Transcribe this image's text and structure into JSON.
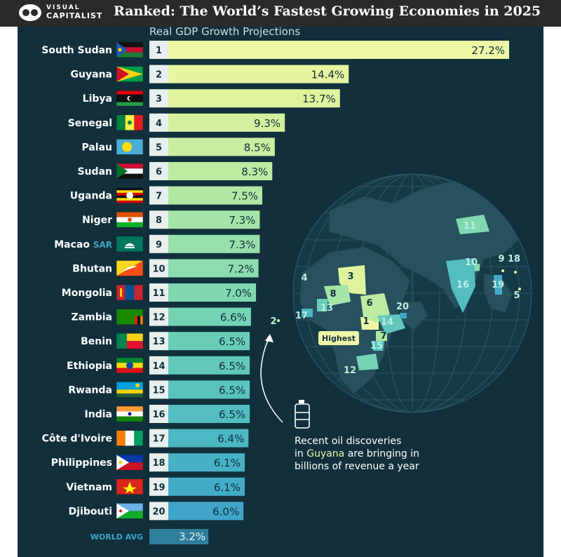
{
  "header": {
    "brand_line1": "VISUAL",
    "brand_line2": "CAPITALIST",
    "title": "Ranked: The World’s Fastest Growing Economies in 2025"
  },
  "chart_data": {
    "type": "bar",
    "title": "Ranked: The World’s Fastest Growing Economies in 2025",
    "subtitle": "Real GDP Growth Projections",
    "unit": "%",
    "categories": [
      "South Sudan",
      "Guyana",
      "Libya",
      "Senegal",
      "Palau",
      "Sudan",
      "Uganda",
      "Niger",
      "Macao",
      "Bhutan",
      "Mongolia",
      "Zambia",
      "Benin",
      "Ethiopia",
      "Rwanda",
      "India",
      "Côte d'Ivoire",
      "Philippines",
      "Vietnam",
      "Djibouti"
    ],
    "category_suffix": {
      "Macao": "SAR"
    },
    "ranks": [
      "1",
      "2",
      "3",
      "4",
      "5",
      "6",
      "7",
      "8",
      "9",
      "10",
      "11",
      "12",
      "13",
      "14",
      "15",
      "16",
      "17",
      "18",
      "19",
      "20"
    ],
    "values": [
      27.2,
      14.4,
      13.7,
      9.3,
      8.5,
      8.3,
      7.5,
      7.3,
      7.3,
      7.2,
      7.0,
      6.6,
      6.5,
      6.5,
      6.5,
      6.5,
      6.4,
      6.1,
      6.1,
      6.0
    ],
    "value_labels": [
      "27.2%",
      "14.4%",
      "13.7%",
      "9.3%",
      "8.5%",
      "8.3%",
      "7.5%",
      "7.3%",
      "7.3%",
      "7.2%",
      "7.0%",
      "6.6%",
      "6.5%",
      "6.5%",
      "6.5%",
      "6.5%",
      "6.4%",
      "6.1%",
      "6.1%",
      "6.0%"
    ],
    "reference": {
      "label": "WORLD AVG",
      "value": 3.2,
      "value_label": "3.2%"
    },
    "bar_colors": [
      "#eef7a6",
      "#e6f5a0",
      "#def39c",
      "#d4f09e",
      "#c8ee9f",
      "#bceba1",
      "#b0e8a3",
      "#a4e4a6",
      "#98e0aa",
      "#8cdcad",
      "#80d8b1",
      "#74d3b5",
      "#6acdb8",
      "#62c8bc",
      "#5ac3c0",
      "#53bdc2",
      "#4db7c4",
      "#48b1c6",
      "#44abc7",
      "#40a5c8"
    ],
    "reference_color": "#2f7f9c",
    "ylim": [
      0,
      27.2
    ],
    "flags": [
      "south-sudan",
      "guyana",
      "libya",
      "senegal",
      "palau",
      "sudan",
      "uganda",
      "niger",
      "macao",
      "bhutan",
      "mongolia",
      "zambia",
      "benin",
      "ethiopia",
      "rwanda",
      "india",
      "cote-divoire",
      "philippines",
      "vietnam",
      "djibouti"
    ]
  },
  "map": {
    "labels": [
      "1",
      "2",
      "3",
      "4",
      "5",
      "6",
      "7",
      "8",
      "9",
      "10",
      "11",
      "12",
      "13",
      "14",
      "15",
      "16",
      "17",
      "18",
      "19",
      "20"
    ],
    "highest_label": "Highest"
  },
  "callout": {
    "line1": "Recent oil discoveries",
    "line2_pre": "in",
    "line2_highlight": "Guyana",
    "line2_post": "are bringing in",
    "line3": "billions of revenue a year"
  },
  "colors": {
    "background": "#12303b",
    "topbar": "#2a2a2a",
    "highlight": "#e6f5a0"
  }
}
